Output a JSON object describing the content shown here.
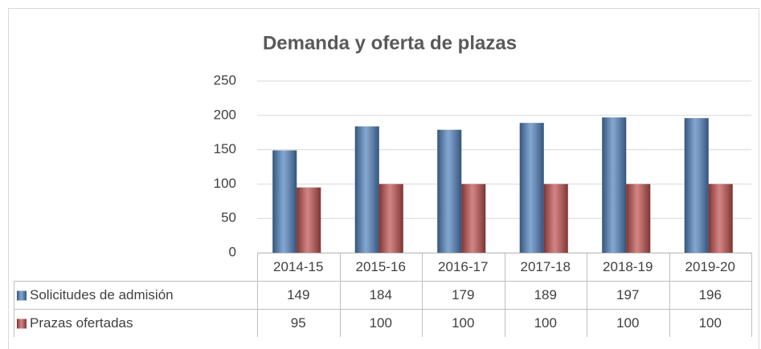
{
  "chart_data": {
    "type": "bar",
    "title": "Demanda y oferta de plazas",
    "categories": [
      "2014-15",
      "2015-16",
      "2016-17",
      "2017-18",
      "2018-19",
      "2019-20"
    ],
    "series": [
      {
        "name": "Solicitudes de admisión",
        "color": "#4f81bd",
        "values": [
          149,
          184,
          179,
          189,
          197,
          196
        ]
      },
      {
        "name": "Prazas ofertadas",
        "color": "#c0504d",
        "values": [
          95,
          100,
          100,
          100,
          100,
          100
        ]
      }
    ],
    "ylim": [
      0,
      250
    ],
    "yticks": [
      0,
      50,
      100,
      150,
      200,
      250
    ],
    "grid": true,
    "data_table": true
  }
}
